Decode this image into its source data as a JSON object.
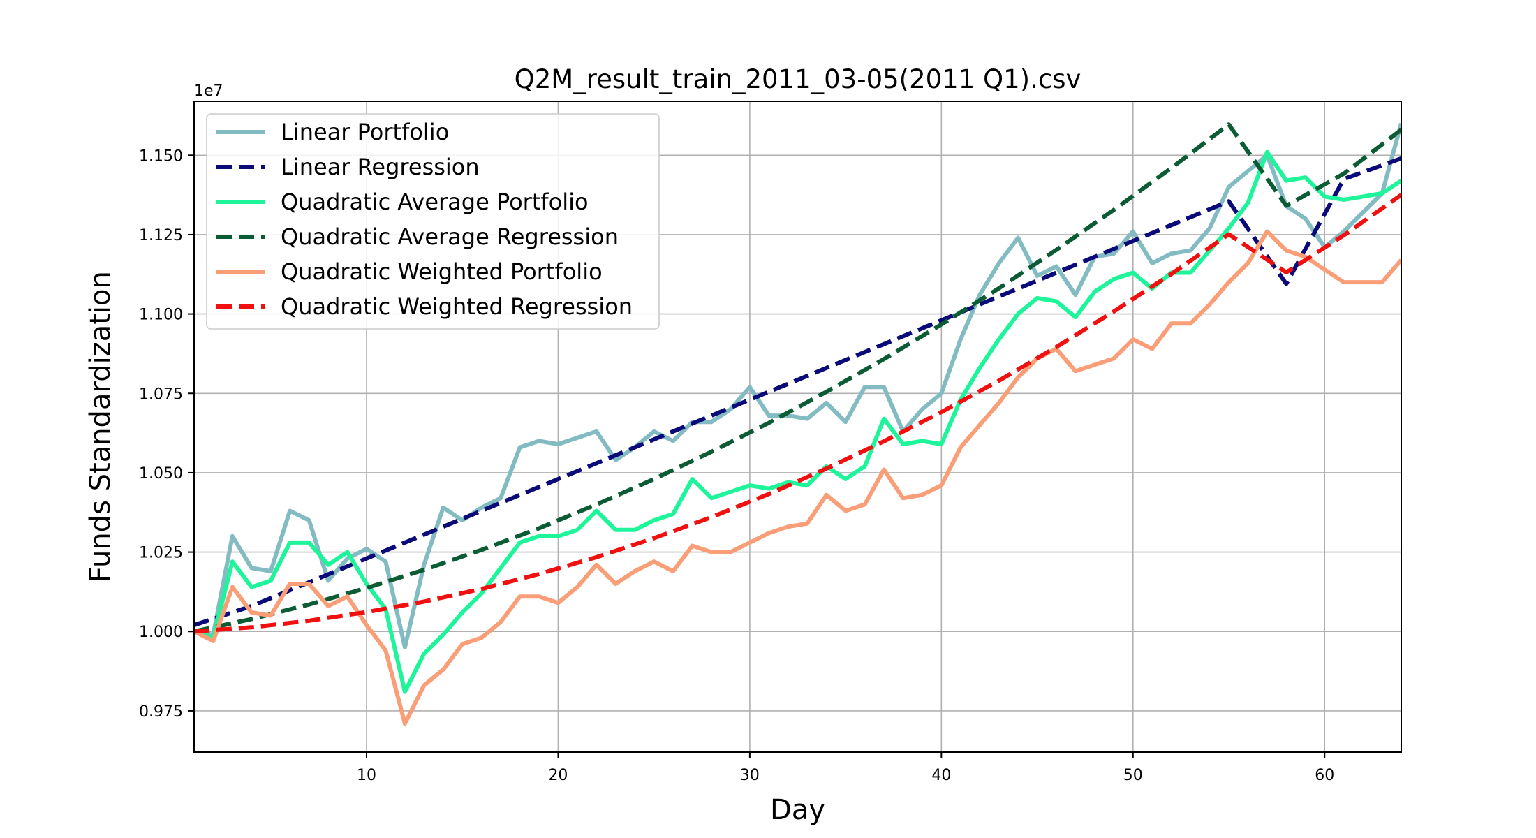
{
  "chart_data": {
    "type": "line",
    "title": "Q2M_result_train_2011_03-05(2011 Q1).csv",
    "xlabel": "Day",
    "ylabel": "Funds Standardization",
    "y_offset_label": "1e7",
    "xlim": [
      1,
      64
    ],
    "ylim": [
      0.962,
      1.167
    ],
    "x_ticks": [
      10,
      20,
      30,
      40,
      50,
      60
    ],
    "x_tick_labels": [
      "10",
      "20",
      "30",
      "40",
      "50",
      "60"
    ],
    "y_ticks": [
      0.975,
      1.0,
      1.025,
      1.05,
      1.075,
      1.1,
      1.125,
      1.15
    ],
    "y_tick_labels": [
      "0.975",
      "1.000",
      "1.025",
      "1.050",
      "1.075",
      "1.100",
      "1.125",
      "1.150"
    ],
    "grid": true,
    "legend_position": "top-left",
    "series": [
      {
        "name": "Linear Portfolio",
        "style": "solid",
        "color": "#82bcc2",
        "x": [
          1,
          2,
          3,
          4,
          5,
          6,
          7,
          8,
          9,
          10,
          11,
          12,
          13,
          14,
          15,
          16,
          17,
          18,
          19,
          20,
          21,
          22,
          23,
          24,
          25,
          26,
          27,
          28,
          29,
          30,
          31,
          32,
          33,
          34,
          35,
          36,
          37,
          38,
          39,
          40,
          41,
          42,
          43,
          44,
          45,
          46,
          47,
          48,
          49,
          50,
          51,
          52,
          53,
          54,
          55,
          56,
          57,
          58,
          59,
          60,
          61,
          62,
          63,
          64
        ],
        "y": [
          1.0,
          0.999,
          1.03,
          1.02,
          1.019,
          1.038,
          1.035,
          1.016,
          1.023,
          1.026,
          1.022,
          0.995,
          1.021,
          1.039,
          1.035,
          1.039,
          1.042,
          1.058,
          1.06,
          1.059,
          1.061,
          1.063,
          1.054,
          1.058,
          1.063,
          1.06,
          1.066,
          1.066,
          1.07,
          1.077,
          1.068,
          1.068,
          1.067,
          1.072,
          1.066,
          1.077,
          1.077,
          1.063,
          1.07,
          1.075,
          1.092,
          1.106,
          1.116,
          1.124,
          1.112,
          1.115,
          1.106,
          1.118,
          1.119,
          1.126,
          1.116,
          1.119,
          1.12,
          1.127,
          1.14,
          1.145,
          1.15,
          1.134,
          1.13,
          1.121,
          1.126,
          1.132,
          1.138,
          1.16
        ]
      },
      {
        "name": "Linear Regression",
        "style": "dashed",
        "color": "#0a0a78",
        "x": [
          1,
          4,
          7,
          10,
          13,
          16,
          19,
          22,
          25,
          28,
          31,
          34,
          37,
          40,
          43,
          46,
          49,
          52,
          55,
          58,
          61,
          64
        ],
        "y": [
          1.002,
          1.008,
          1.0155,
          1.023,
          1.0305,
          1.038,
          1.0455,
          1.053,
          1.0605,
          1.068,
          1.0755,
          1.083,
          1.0905,
          1.098,
          1.1055,
          1.113,
          1.1205,
          1.128,
          1.1355,
          1.1095,
          1.1425,
          1.149
        ]
      },
      {
        "name": "Quadratic Average Portfolio",
        "style": "solid",
        "color": "#1ef59a",
        "x": [
          1,
          2,
          3,
          4,
          5,
          6,
          7,
          8,
          9,
          10,
          11,
          12,
          13,
          14,
          15,
          16,
          17,
          18,
          19,
          20,
          21,
          22,
          23,
          24,
          25,
          26,
          27,
          28,
          29,
          30,
          31,
          32,
          33,
          34,
          35,
          36,
          37,
          38,
          39,
          40,
          41,
          42,
          43,
          44,
          45,
          46,
          47,
          48,
          49,
          50,
          51,
          52,
          53,
          54,
          55,
          56,
          57,
          58,
          59,
          60,
          61,
          62,
          63,
          64
        ],
        "y": [
          1.0,
          0.998,
          1.022,
          1.014,
          1.016,
          1.028,
          1.028,
          1.021,
          1.025,
          1.015,
          1.007,
          0.981,
          0.993,
          0.999,
          1.006,
          1.012,
          1.02,
          1.028,
          1.03,
          1.03,
          1.032,
          1.038,
          1.032,
          1.032,
          1.035,
          1.037,
          1.048,
          1.042,
          1.044,
          1.046,
          1.045,
          1.047,
          1.046,
          1.052,
          1.048,
          1.052,
          1.067,
          1.059,
          1.06,
          1.059,
          1.073,
          1.083,
          1.092,
          1.1,
          1.105,
          1.104,
          1.099,
          1.107,
          1.111,
          1.113,
          1.108,
          1.113,
          1.113,
          1.12,
          1.127,
          1.135,
          1.151,
          1.142,
          1.143,
          1.137,
          1.136,
          1.137,
          1.138,
          1.142
        ]
      },
      {
        "name": "Quadratic Average Regression",
        "style": "dashed",
        "color": "#0b5c34",
        "x": [
          1,
          4,
          7,
          10,
          13,
          16,
          19,
          22,
          25,
          28,
          31,
          34,
          37,
          40,
          43,
          46,
          49,
          52,
          55,
          58,
          61,
          64
        ],
        "y": [
          1.0,
          1.0039,
          1.0085,
          1.0137,
          1.0194,
          1.0257,
          1.0325,
          1.04,
          1.048,
          1.0566,
          1.0657,
          1.0755,
          1.0858,
          1.0967,
          1.1081,
          1.1202,
          1.1328,
          1.146,
          1.1597,
          1.1341,
          1.1442,
          1.158
        ]
      },
      {
        "name": "Quadratic Weighted Portfolio",
        "style": "solid",
        "color": "#fa9e78",
        "x": [
          1,
          2,
          3,
          4,
          5,
          6,
          7,
          8,
          9,
          10,
          11,
          12,
          13,
          14,
          15,
          16,
          17,
          18,
          19,
          20,
          21,
          22,
          23,
          24,
          25,
          26,
          27,
          28,
          29,
          30,
          31,
          32,
          33,
          34,
          35,
          36,
          37,
          38,
          39,
          40,
          41,
          42,
          43,
          44,
          45,
          46,
          47,
          48,
          49,
          50,
          51,
          52,
          53,
          54,
          55,
          56,
          57,
          58,
          59,
          60,
          61,
          62,
          63,
          64
        ],
        "y": [
          1.0,
          0.997,
          1.014,
          1.006,
          1.005,
          1.015,
          1.015,
          1.008,
          1.011,
          1.002,
          0.994,
          0.971,
          0.983,
          0.988,
          0.996,
          0.998,
          1.003,
          1.011,
          1.011,
          1.009,
          1.014,
          1.021,
          1.015,
          1.019,
          1.022,
          1.019,
          1.027,
          1.025,
          1.025,
          1.028,
          1.031,
          1.033,
          1.034,
          1.043,
          1.038,
          1.04,
          1.051,
          1.042,
          1.043,
          1.046,
          1.058,
          1.065,
          1.072,
          1.08,
          1.086,
          1.089,
          1.082,
          1.084,
          1.086,
          1.092,
          1.089,
          1.097,
          1.097,
          1.103,
          1.11,
          1.116,
          1.126,
          1.12,
          1.118,
          1.114,
          1.11,
          1.11,
          1.11,
          1.117
        ]
      },
      {
        "name": "Quadratic Weighted Regression",
        "style": "dashed",
        "color": "#f01010",
        "x": [
          1,
          4,
          7,
          10,
          13,
          16,
          19,
          22,
          25,
          28,
          31,
          34,
          37,
          40,
          43,
          46,
          49,
          52,
          55,
          58,
          61,
          64
        ],
        "y": [
          1.0,
          1.0013,
          1.0034,
          1.0061,
          1.0094,
          1.0134,
          1.0181,
          1.0234,
          1.0294,
          1.036,
          1.0433,
          1.0513,
          1.0599,
          1.0691,
          1.079,
          1.0896,
          1.1008,
          1.1126,
          1.1251,
          1.1131,
          1.1248,
          1.1375
        ]
      }
    ]
  }
}
